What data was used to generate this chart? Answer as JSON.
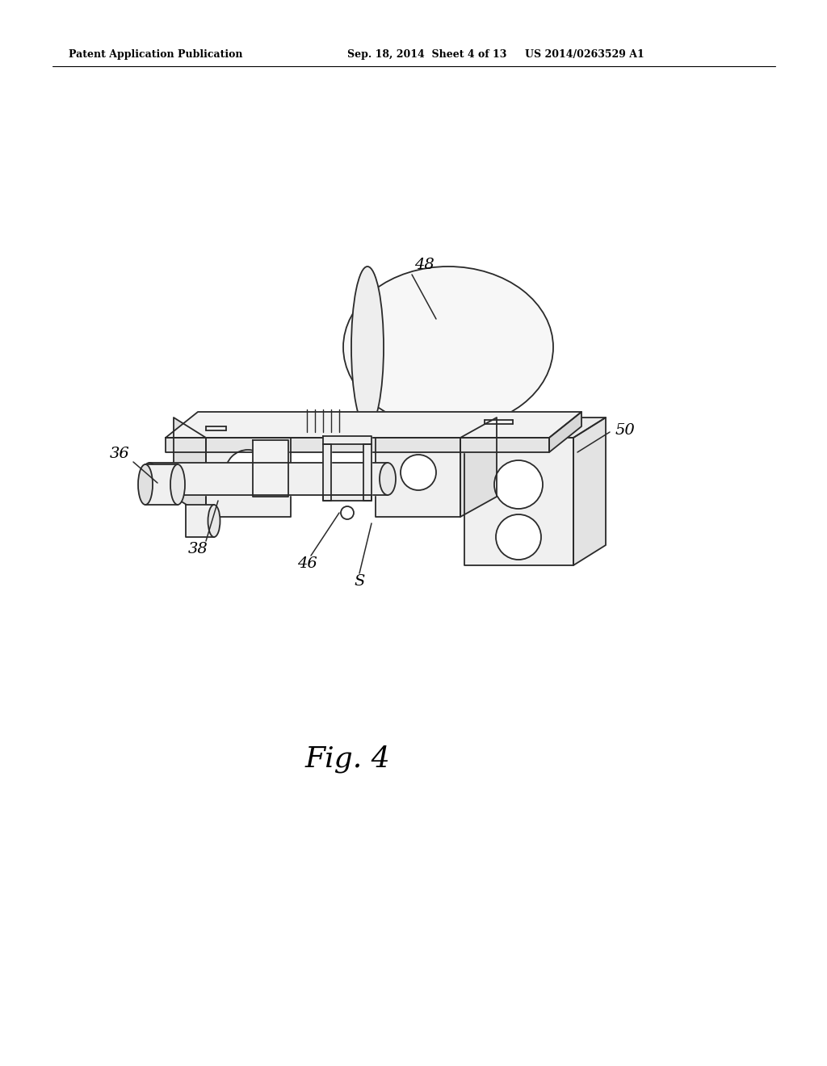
{
  "background_color": "#ffffff",
  "header_left": "Patent Application Publication",
  "header_center": "Sep. 18, 2014  Sheet 4 of 13",
  "header_right": "US 2014/0263529 A1",
  "figure_label": "Fig. 4",
  "line_color": "#2a2a2a",
  "line_width": 1.3,
  "fig_label_fontsize": 26,
  "label_fontsize": 14,
  "header_fontsize": 9
}
